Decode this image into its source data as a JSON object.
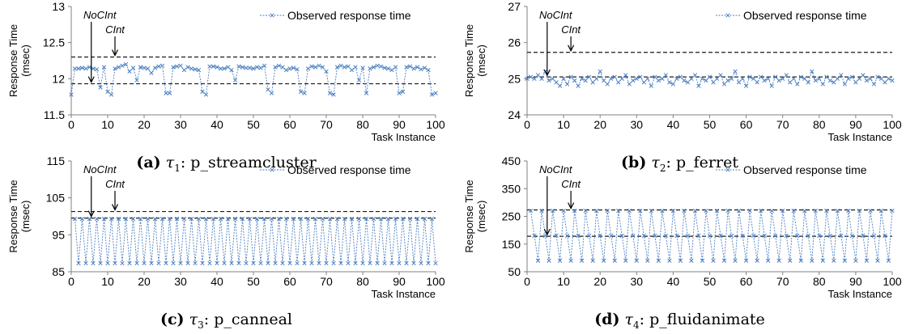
{
  "common": {
    "ylabel_line1": "Response Time",
    "ylabel_line2": "(msec)",
    "xlabel": "Task Instance",
    "legend": "Observed response time",
    "ann_noclnt": "NoCInt",
    "ann_clnt": "CInt",
    "colors": {
      "series": "#4a7fc1",
      "bound": "#1a1a1a",
      "axis": "#808080"
    }
  },
  "chart_data": [
    {
      "type": "line",
      "label": "(a)",
      "task": "1",
      "benchmark": "p_streamcluster",
      "xlim": [
        0,
        100
      ],
      "xticks": [
        0,
        10,
        20,
        30,
        40,
        50,
        60,
        70,
        80,
        90,
        100
      ],
      "ylim": [
        11.5,
        13
      ],
      "yticks": [
        "11.5",
        "12",
        "12.5",
        "13"
      ],
      "bounds": {
        "noclnt": 11.93,
        "clnt": 12.3
      },
      "series": [
        {
          "values": [
            11.78,
            12.14,
            12.14,
            12.15,
            12.14,
            12.16,
            12.14,
            12.13,
            11.88,
            12.16,
            11.82,
            11.78,
            12.14,
            12.16,
            12.18,
            12.2,
            12.1,
            12.15,
            11.98,
            12.16,
            12.15,
            12.14,
            12.08,
            12.15,
            12.17,
            12.18,
            11.8,
            11.8,
            12.16,
            12.17,
            12.18,
            12.12,
            12.16,
            12.14,
            12.13,
            12.12,
            11.82,
            11.78,
            12.17,
            12.17,
            12.16,
            12.14,
            12.14,
            12.16,
            12.12,
            11.98,
            12.17,
            12.16,
            12.15,
            12.15,
            12.14,
            12.16,
            12.15,
            12.18,
            11.85,
            11.8,
            12.16,
            12.18,
            12.16,
            12.12,
            12.14,
            12.15,
            12.13,
            11.82,
            11.8,
            12.14,
            12.17,
            12.16,
            12.18,
            12.16,
            12.1,
            11.8,
            11.78,
            12.16,
            12.18,
            12.16,
            12.17,
            12.12,
            12.16,
            11.98,
            12.15,
            11.8,
            12.14,
            12.16,
            12.18,
            12.17,
            12.15,
            12.14,
            12.12,
            12.16,
            11.8,
            11.82,
            12.16,
            12.17,
            12.14,
            12.16,
            12.13,
            12.15,
            12.12,
            11.78,
            11.8
          ]
        }
      ]
    },
    {
      "type": "line",
      "label": "(b)",
      "task": "2",
      "benchmark": "p_ferret",
      "xlim": [
        0,
        100
      ],
      "xticks": [
        0,
        10,
        20,
        30,
        40,
        50,
        60,
        70,
        80,
        90,
        100
      ],
      "ylim": [
        24,
        27
      ],
      "yticks": [
        "24",
        "25",
        "26",
        "27"
      ],
      "bounds": {
        "noclnt": 25.05,
        "clnt": 25.73
      },
      "series": [
        {
          "values": [
            25.0,
            25.05,
            25.0,
            25.1,
            25.0,
            25.2,
            24.95,
            25.0,
            24.9,
            24.8,
            25.0,
            24.85,
            25.05,
            24.95,
            24.8,
            25.0,
            24.95,
            25.05,
            24.9,
            25.0,
            25.2,
            24.95,
            24.85,
            25.0,
            25.05,
            24.9,
            25.0,
            25.1,
            24.85,
            24.95,
            25.0,
            25.05,
            24.9,
            25.0,
            24.8,
            25.05,
            24.95,
            25.0,
            25.1,
            24.9,
            24.85,
            25.0,
            25.05,
            24.95,
            24.9,
            25.0,
            25.1,
            24.8,
            25.0,
            24.95,
            25.05,
            24.9,
            25.0,
            25.1,
            24.85,
            24.95,
            25.0,
            25.2,
            24.9,
            25.0,
            24.8,
            25.05,
            25.0,
            24.9,
            25.05,
            24.95,
            25.0,
            24.8,
            25.05,
            24.95,
            25.0,
            25.1,
            24.9,
            25.0,
            24.85,
            25.05,
            25.0,
            24.9,
            25.2,
            24.95,
            25.0,
            24.85,
            25.05,
            24.95,
            24.9,
            25.0,
            25.1,
            24.85,
            25.0,
            25.05,
            24.9,
            25.0,
            25.1,
            24.95,
            25.0,
            24.85,
            25.05,
            25.0,
            24.9,
            25.0,
            24.95
          ]
        }
      ]
    },
    {
      "type": "line",
      "label": "(c)",
      "task": "3",
      "benchmark": "p_canneal",
      "xlim": [
        0,
        100
      ],
      "xticks": [
        0,
        10,
        20,
        30,
        40,
        50,
        60,
        70,
        80,
        90,
        100
      ],
      "ylim": [
        85,
        115
      ],
      "yticks": [
        "85",
        "95",
        "105",
        "115"
      ],
      "bounds": {
        "noclnt": 99.5,
        "clnt": 101.3
      },
      "pattern": {
        "high": 99.3,
        "low": 87.3,
        "start_x": 1,
        "end_x": 100
      }
    },
    {
      "type": "line",
      "label": "(d)",
      "task": "4",
      "benchmark": "p_fluidanimate",
      "xlim": [
        0,
        100
      ],
      "xticks": [
        0,
        10,
        20,
        30,
        40,
        50,
        60,
        70,
        80,
        90,
        100
      ],
      "ylim": [
        50,
        450
      ],
      "yticks": [
        "50",
        "150",
        "250",
        "350",
        "450"
      ],
      "bounds": {
        "noclnt": 178,
        "clnt": 273
      },
      "pattern": {
        "cycle": [
          270,
          180,
          90
        ],
        "start_x": 1,
        "end_x": 100
      }
    }
  ]
}
